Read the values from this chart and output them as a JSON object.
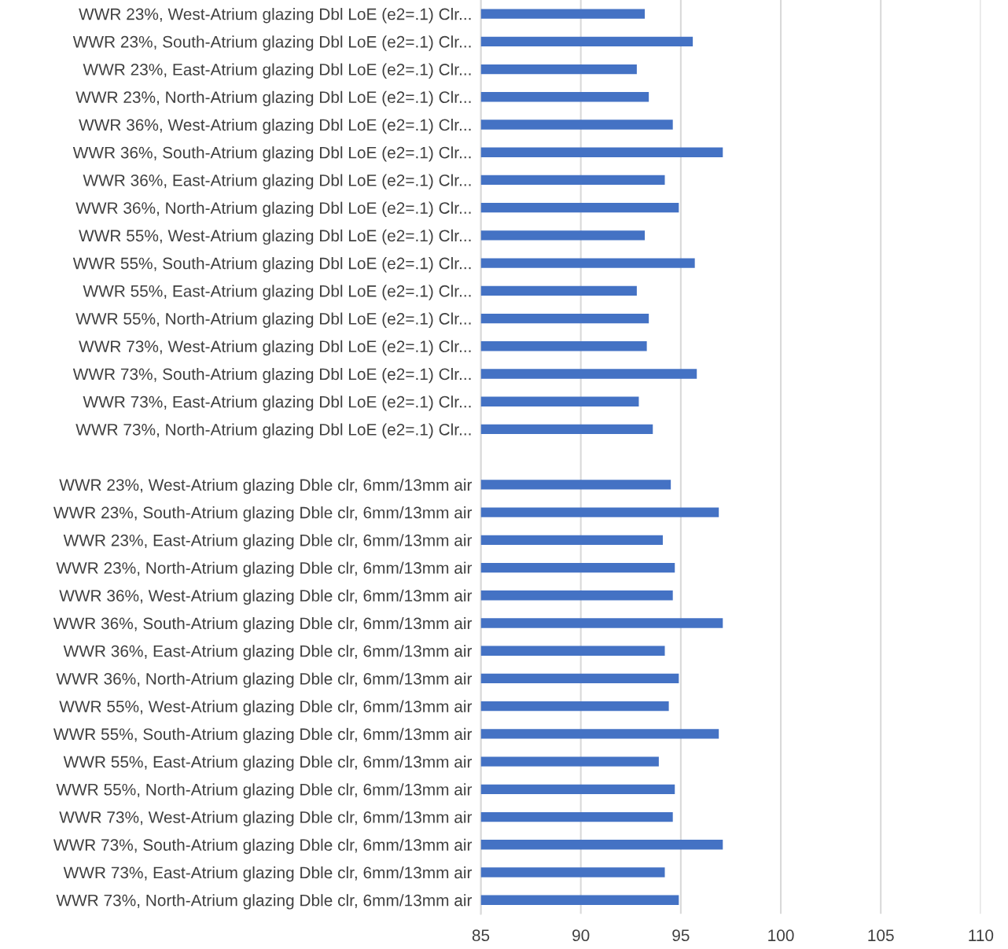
{
  "chart_data": {
    "type": "bar",
    "orientation": "horizontal",
    "color": "#4472c4",
    "categories": [
      "WWR 23%, West-Atrium glazing Dbl LoE (e2=.1) Clr...",
      "WWR 23%, South-Atrium glazing Dbl LoE (e2=.1) Clr...",
      "WWR 23%, East-Atrium glazing Dbl LoE (e2=.1) Clr...",
      "WWR 23%, North-Atrium glazing Dbl LoE (e2=.1) Clr...",
      "WWR 36%, West-Atrium glazing Dbl LoE (e2=.1) Clr...",
      "WWR 36%, South-Atrium glazing Dbl LoE (e2=.1) Clr...",
      "WWR 36%, East-Atrium glazing Dbl LoE (e2=.1) Clr...",
      "WWR 36%, North-Atrium glazing Dbl LoE (e2=.1) Clr...",
      "WWR 55%, West-Atrium glazing Dbl LoE (e2=.1) Clr...",
      "WWR 55%, South-Atrium glazing Dbl LoE (e2=.1) Clr...",
      "WWR 55%, East-Atrium glazing Dbl LoE (e2=.1) Clr...",
      "WWR 55%, North-Atrium glazing Dbl LoE (e2=.1) Clr...",
      "WWR 73%, West-Atrium glazing Dbl LoE (e2=.1) Clr...",
      "WWR 73%, South-Atrium glazing Dbl LoE (e2=.1) Clr...",
      "WWR 73%, East-Atrium glazing Dbl LoE (e2=.1) Clr...",
      "WWR 73%, North-Atrium glazing Dbl LoE (e2=.1) Clr...",
      null,
      "WWR 23%, West-Atrium glazing Dble clr, 6mm/13mm air",
      "WWR 23%, South-Atrium glazing Dble clr, 6mm/13mm air",
      "WWR 23%, East-Atrium glazing Dble clr, 6mm/13mm air",
      "WWR 23%, North-Atrium glazing Dble clr, 6mm/13mm air",
      "WWR 36%, West-Atrium glazing Dble clr, 6mm/13mm air",
      "WWR 36%, South-Atrium glazing Dble clr, 6mm/13mm air",
      "WWR 36%, East-Atrium glazing Dble clr, 6mm/13mm air",
      "WWR 36%, North-Atrium glazing Dble clr, 6mm/13mm air",
      "WWR 55%, West-Atrium glazing Dble clr, 6mm/13mm air",
      "WWR 55%, South-Atrium glazing Dble clr, 6mm/13mm air",
      "WWR 55%, East-Atrium glazing Dble clr, 6mm/13mm air",
      "WWR 55%, North-Atrium glazing Dble clr, 6mm/13mm air",
      "WWR 73%, West-Atrium glazing Dble clr, 6mm/13mm air",
      "WWR 73%, South-Atrium glazing Dble clr, 6mm/13mm air",
      "WWR 73%, East-Atrium glazing Dble clr, 6mm/13mm air",
      "WWR 73%, North-Atrium glazing Dble clr, 6mm/13mm air"
    ],
    "values": [
      93.2,
      95.6,
      92.8,
      93.4,
      94.6,
      97.1,
      94.2,
      94.9,
      93.2,
      95.7,
      92.8,
      93.4,
      93.3,
      95.8,
      92.9,
      93.6,
      null,
      94.5,
      96.9,
      94.1,
      94.7,
      94.6,
      97.1,
      94.2,
      94.9,
      94.4,
      96.9,
      93.9,
      94.7,
      94.6,
      97.1,
      94.2,
      94.9
    ],
    "xlim": [
      85,
      110
    ],
    "xticks": [
      85,
      90,
      95,
      100,
      105,
      110
    ],
    "grid": "x"
  }
}
